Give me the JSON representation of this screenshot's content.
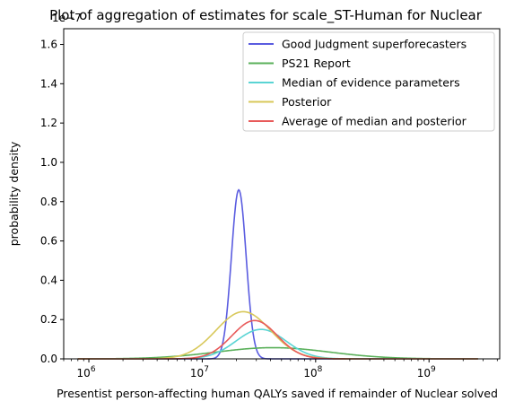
{
  "chart_data": {
    "type": "line",
    "title": "Plot of aggregation of estimates for scale_ST-Human for Nuclear",
    "xlabel": "Presentist person-affecting human QALYs saved if remainder of Nuclear solved",
    "ylabel": "probability density",
    "y_offset_label": "1e−7",
    "xscale": "log",
    "xlim": [
      600000,
      4200000000
    ],
    "ylim": [
      0,
      1.68
    ],
    "x_ticks": [
      {
        "value": 1000000,
        "base": "10",
        "exp": "6"
      },
      {
        "value": 10000000,
        "base": "10",
        "exp": "7"
      },
      {
        "value": 100000000,
        "base": "10",
        "exp": "8"
      },
      {
        "value": 1000000000,
        "base": "10",
        "exp": "9"
      }
    ],
    "y_ticks": [
      "0.0",
      "0.2",
      "0.4",
      "0.6",
      "0.8",
      "1.0",
      "1.2",
      "1.4",
      "1.6"
    ],
    "x_data_range": [
      800000,
      2700000000
    ],
    "legend_position": "upper right",
    "series": [
      {
        "name": "Good Judgment superforecasters",
        "color": "#5a5ce0",
        "peak_x": 21000000,
        "peak_y": 0.86,
        "sigma_log10": 0.065
      },
      {
        "name": "PS21 Report",
        "color": "#5ab05a",
        "peak_x": 42000000,
        "peak_y": 0.057,
        "sigma_log10": 0.5
      },
      {
        "name": "Median of evidence parameters",
        "color": "#5ad4d4",
        "peak_x": 33000000,
        "peak_y": 0.15,
        "sigma_log10": 0.22
      },
      {
        "name": "Posterior",
        "color": "#d8c85a",
        "peak_x": 23000000,
        "peak_y": 0.24,
        "sigma_log10": 0.24
      },
      {
        "name": "Average of median and posterior",
        "color": "#e85a5a",
        "peak_x": 29000000,
        "peak_y": 0.195,
        "sigma_log10": 0.2
      }
    ]
  }
}
